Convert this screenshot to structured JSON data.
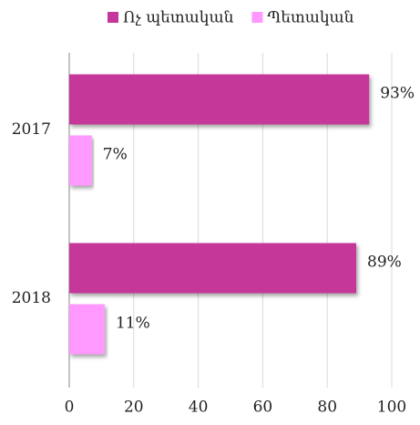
{
  "chart_data": {
    "type": "barh",
    "categories": [
      "2017",
      "2018"
    ],
    "series": [
      {
        "name": "Ոչ պետական",
        "color": "#c5379a",
        "values": [
          93,
          89
        ],
        "value_labels": [
          "93%",
          "89%"
        ]
      },
      {
        "name": "Պետական",
        "color": "#ff99ff",
        "values": [
          7,
          11
        ],
        "value_labels": [
          "7%",
          "11%"
        ]
      }
    ],
    "xlim": [
      0,
      100
    ],
    "xticks": [
      0,
      20,
      40,
      60,
      80,
      100
    ],
    "grid": true,
    "legend": "top"
  }
}
